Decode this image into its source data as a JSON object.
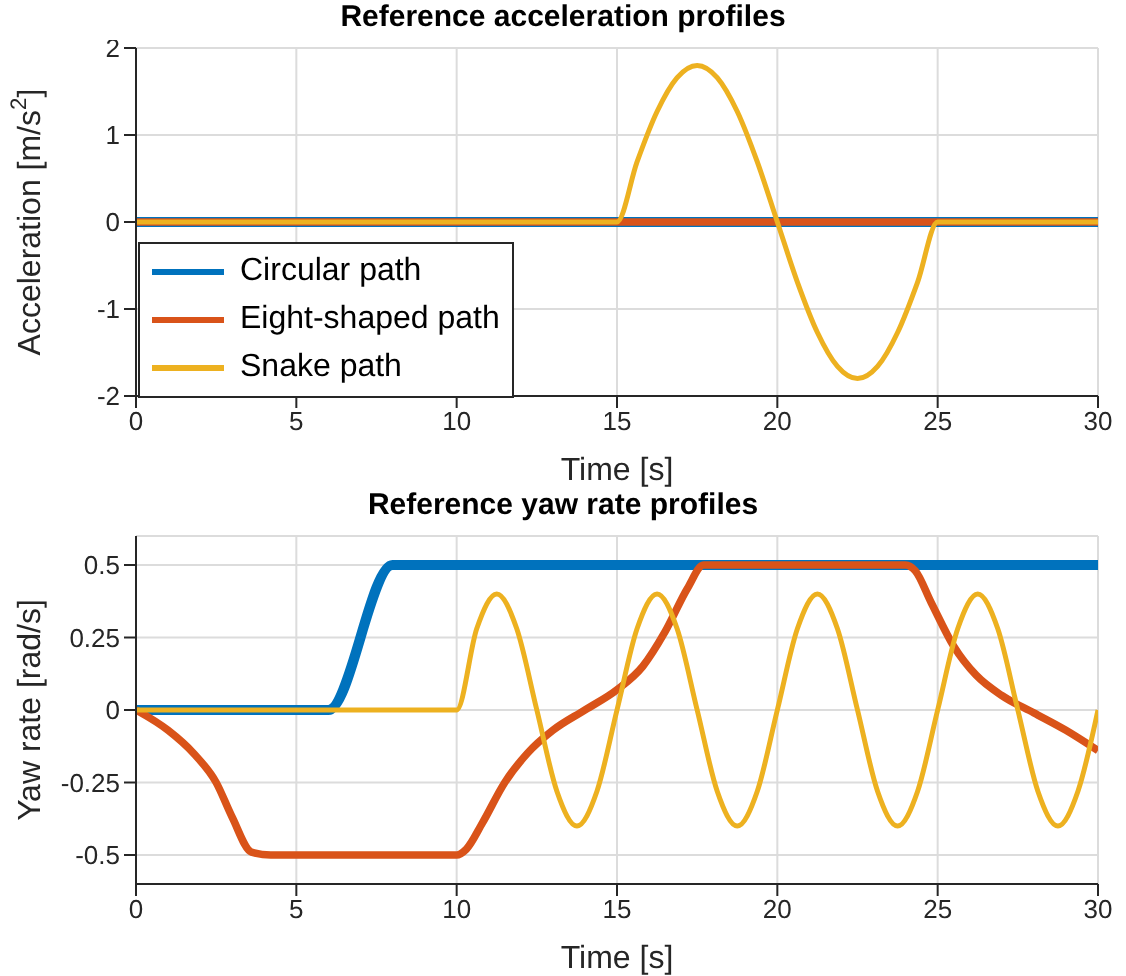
{
  "chart_data": [
    {
      "type": "line",
      "title": "Reference acceleration profiles",
      "xlabel": "Time [s]",
      "ylabel": "Acceleration [m/s$^{2}$]",
      "xlim": [
        0,
        30
      ],
      "xticks": [
        0,
        5,
        10,
        15,
        20,
        25,
        30
      ],
      "ylim": [
        -2,
        2
      ],
      "yticks": [
        -2,
        -1,
        0,
        1,
        2
      ],
      "grid": true,
      "legend": "bottom left",
      "marker": "none",
      "line_style": "solid",
      "series": [
        {
          "name": "Circular path",
          "color": "#0072bd",
          "x": [
            0,
            30
          ],
          "values": [
            0,
            0
          ]
        },
        {
          "name": "Eight-shaped path",
          "color": "#d95319",
          "x": [
            0,
            30
          ],
          "values": [
            0,
            0
          ]
        },
        {
          "name": "Snake path",
          "color": "#edb120",
          "x": [
            0,
            15,
            15.625,
            16.25,
            16.875,
            17.5,
            18.125,
            18.75,
            19.375,
            20,
            20.625,
            21.25,
            21.875,
            22.5,
            23.125,
            23.75,
            24.375,
            25,
            30
          ],
          "values": [
            0,
            0,
            0.69,
            1.27,
            1.66,
            1.8,
            1.66,
            1.27,
            0.69,
            0,
            -0.69,
            -1.27,
            -1.66,
            -1.8,
            -1.66,
            -1.27,
            -0.69,
            0,
            0
          ]
        }
      ]
    },
    {
      "type": "line",
      "title": "Reference yaw rate profiles",
      "xlabel": "Time [s]",
      "ylabel": "Yaw rate [rad/s]",
      "xlim": [
        0,
        30
      ],
      "xticks": [
        0,
        5,
        10,
        15,
        20,
        25,
        30
      ],
      "ylim": [
        -0.6,
        0.6
      ],
      "yticks": [
        -0.5,
        -0.25,
        0,
        0.25,
        0.5
      ],
      "grid": true,
      "marker": "none",
      "line_style": "solid",
      "series": [
        {
          "color": "#0072bd",
          "x": [
            0,
            6,
            8,
            30
          ],
          "values": [
            0,
            0,
            0.5,
            0.5
          ]
        },
        {
          "color": "#d95319",
          "x": [
            0,
            1,
            1.8,
            2.5,
            3,
            3.6,
            4.2,
            10,
            10.3,
            10.8,
            11.5,
            12.2,
            13,
            14,
            15,
            15.8,
            16.5,
            17.2,
            17.7,
            24,
            24.3,
            24.8,
            25.5,
            26.2,
            27,
            28,
            29,
            30
          ],
          "values": [
            0,
            -0.07,
            -0.15,
            -0.25,
            -0.37,
            -0.49,
            -0.5,
            -0.5,
            -0.48,
            -0.39,
            -0.25,
            -0.15,
            -0.07,
            0,
            0.07,
            0.15,
            0.27,
            0.42,
            0.5,
            0.5,
            0.48,
            0.37,
            0.22,
            0.12,
            0.05,
            -0.01,
            -0.07,
            -0.14
          ]
        },
        {
          "color": "#edb120",
          "x": [
            0,
            10,
            10.625,
            11.25,
            11.875,
            12.5,
            13.125,
            13.75,
            14.375,
            15,
            15.625,
            16.25,
            16.875,
            17.5,
            18.125,
            18.75,
            19.375,
            20,
            20.625,
            21.25,
            21.875,
            22.5,
            23.125,
            23.75,
            24.375,
            25,
            25.625,
            26.25,
            26.875,
            27.5,
            28.125,
            28.75,
            29.375,
            30
          ],
          "values": [
            0,
            0,
            0.28,
            0.4,
            0.28,
            0,
            -0.28,
            -0.4,
            -0.28,
            0,
            0.28,
            0.4,
            0.28,
            0,
            -0.28,
            -0.4,
            -0.28,
            0,
            0.28,
            0.4,
            0.28,
            0,
            -0.28,
            -0.4,
            -0.28,
            0,
            0.28,
            0.4,
            0.28,
            0,
            -0.28,
            -0.4,
            -0.28,
            0
          ]
        }
      ]
    }
  ]
}
